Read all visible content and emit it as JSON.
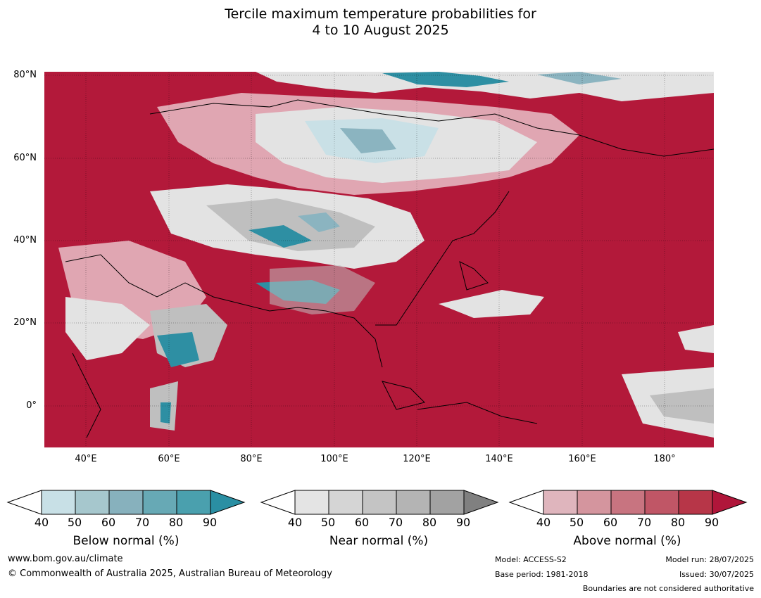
{
  "title": {
    "line1": "Tercile maximum temperature probabilities for",
    "line2": "4 to 10 August 2025"
  },
  "map": {
    "lat_labels": [
      "80°N",
      "60°N",
      "40°N",
      "20°N",
      "0°"
    ],
    "lon_labels": [
      "40°E",
      "60°E",
      "80°E",
      "100°E",
      "120°E",
      "140°E",
      "160°E",
      "180°"
    ],
    "colors": {
      "ocean_above": "#b3193a",
      "land_above_mid": "#c9566a",
      "land_above_low": "#e0a6b2",
      "near_light": "#e3e3e3",
      "near_mid": "#bfbfbf",
      "below_light": "#c9e0e6",
      "below_mid": "#8bb4c0",
      "below_dark": "#2e8fa3"
    }
  },
  "colorbars": [
    {
      "name": "below",
      "title": "Below normal (%)",
      "ticks": [
        "40",
        "50",
        "60",
        "70",
        "80",
        "90"
      ],
      "colors": [
        "#ffffff",
        "#c8e0e6",
        "#a6c7cd",
        "#87b1bd",
        "#67a9b5",
        "#4aa0ae",
        "#2a8fa3"
      ]
    },
    {
      "name": "near",
      "title": "Near normal (%)",
      "ticks": [
        "40",
        "50",
        "60",
        "70",
        "80",
        "90"
      ],
      "colors": [
        "#ffffff",
        "#e4e4e4",
        "#d5d5d5",
        "#c4c4c4",
        "#b4b4b4",
        "#a2a2a2",
        "#808080"
      ]
    },
    {
      "name": "above",
      "title": "Above normal (%)",
      "ticks": [
        "40",
        "50",
        "60",
        "70",
        "80",
        "90"
      ],
      "colors": [
        "#ffffff",
        "#dfb5bd",
        "#d4959e",
        "#c87480",
        "#c05666",
        "#b73648",
        "#b0163a"
      ]
    }
  ],
  "footer": {
    "website": "www.bom.gov.au/climate",
    "copyright": "© Commonwealth of Australia 2025, Australian Bureau of Meteorology",
    "model": "Model: ACCESS-S2",
    "base_period": "Base period: 1981-2018",
    "model_run": "Model run: 28/07/2025",
    "issued": "Issued: 30/07/2025",
    "disclaimer": "Boundaries are not considered authoritative"
  }
}
